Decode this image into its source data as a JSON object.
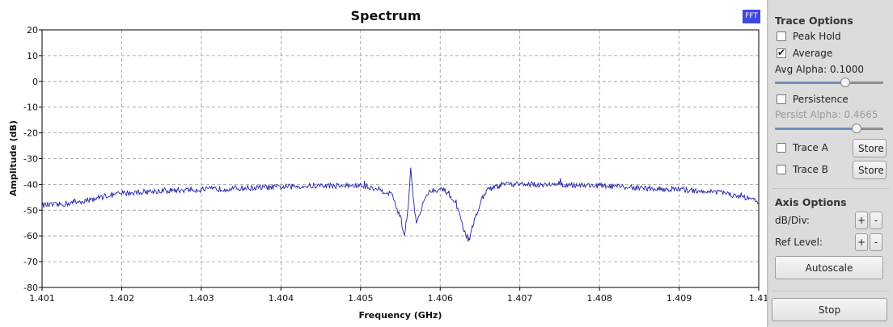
{
  "chart_data": {
    "type": "line",
    "title": "Spectrum",
    "xlabel": "Frequency (GHz)",
    "ylabel": "Amplitude (dB)",
    "xlim": [
      1.401,
      1.41
    ],
    "ylim": [
      -80,
      20
    ],
    "grid": true,
    "x_ticks": [
      1.401,
      1.402,
      1.403,
      1.404,
      1.405,
      1.406,
      1.407,
      1.408,
      1.409,
      1.41
    ],
    "x_tick_labels": [
      "1.401",
      "1.402",
      "1.403",
      "1.404",
      "1.405",
      "1.406",
      "1.407",
      "1.408",
      "1.409",
      "1.41"
    ],
    "y_ticks": [
      20,
      10,
      0,
      -10,
      -20,
      -30,
      -40,
      -50,
      -60,
      -70,
      -80
    ],
    "y_tick_labels": [
      "20",
      "10",
      "0",
      "-10",
      "-20",
      "-30",
      "-40",
      "-50",
      "-60",
      "-70",
      "-80"
    ],
    "color": "#2222aa",
    "series": [
      {
        "x": [
          1.401,
          1.4012,
          1.4014,
          1.4016,
          1.4018,
          1.402,
          1.4022,
          1.4025,
          1.403,
          1.4035,
          1.404,
          1.4045,
          1.405,
          1.4052,
          1.4054,
          1.4055,
          1.40555,
          1.4056,
          1.40563,
          1.40566,
          1.4057,
          1.40575,
          1.4058,
          1.4059,
          1.406,
          1.4061,
          1.4062,
          1.4063,
          1.40635,
          1.4064,
          1.4065,
          1.4066,
          1.4067,
          1.4068,
          1.407,
          1.4075,
          1.408,
          1.4085,
          1.409,
          1.4095,
          1.4098,
          1.41
        ],
        "y": [
          -48,
          -48,
          -47,
          -46,
          -44.5,
          -43.5,
          -43,
          -42.5,
          -42,
          -41.5,
          -41,
          -40.5,
          -40.5,
          -41.5,
          -44,
          -53,
          -60,
          -48,
          -33.5,
          -45,
          -55,
          -51,
          -45,
          -42,
          -42,
          -43,
          -48,
          -58,
          -63,
          -57,
          -47,
          -42,
          -41,
          -40,
          -40,
          -40,
          -40.5,
          -41.5,
          -42,
          -43,
          -45,
          -47
        ]
      }
    ]
  },
  "badge": "FFT",
  "side_panel": {
    "trace_options_title": "Trace Options",
    "peak_hold": {
      "label": "Peak Hold",
      "checked": false
    },
    "average": {
      "label": "Average",
      "checked": true
    },
    "avg_alpha_label": "Avg Alpha: 0.1000",
    "avg_alpha_value": 0.1,
    "persistence": {
      "label": "Persistence",
      "checked": false
    },
    "persist_alpha_label": "Persist Alpha: 0.4665",
    "persist_alpha_value": 0.4665,
    "trace_a": {
      "label": "Trace A",
      "checked": false,
      "store_label": "Store"
    },
    "trace_b": {
      "label": "Trace B",
      "checked": false,
      "store_label": "Store"
    },
    "axis_options_title": "Axis Options",
    "db_div_label": "dB/Div:",
    "ref_level_label": "Ref Level:",
    "plus_label": "+",
    "minus_label": "-",
    "autoscale_label": "Autoscale",
    "stop_label": "Stop"
  }
}
